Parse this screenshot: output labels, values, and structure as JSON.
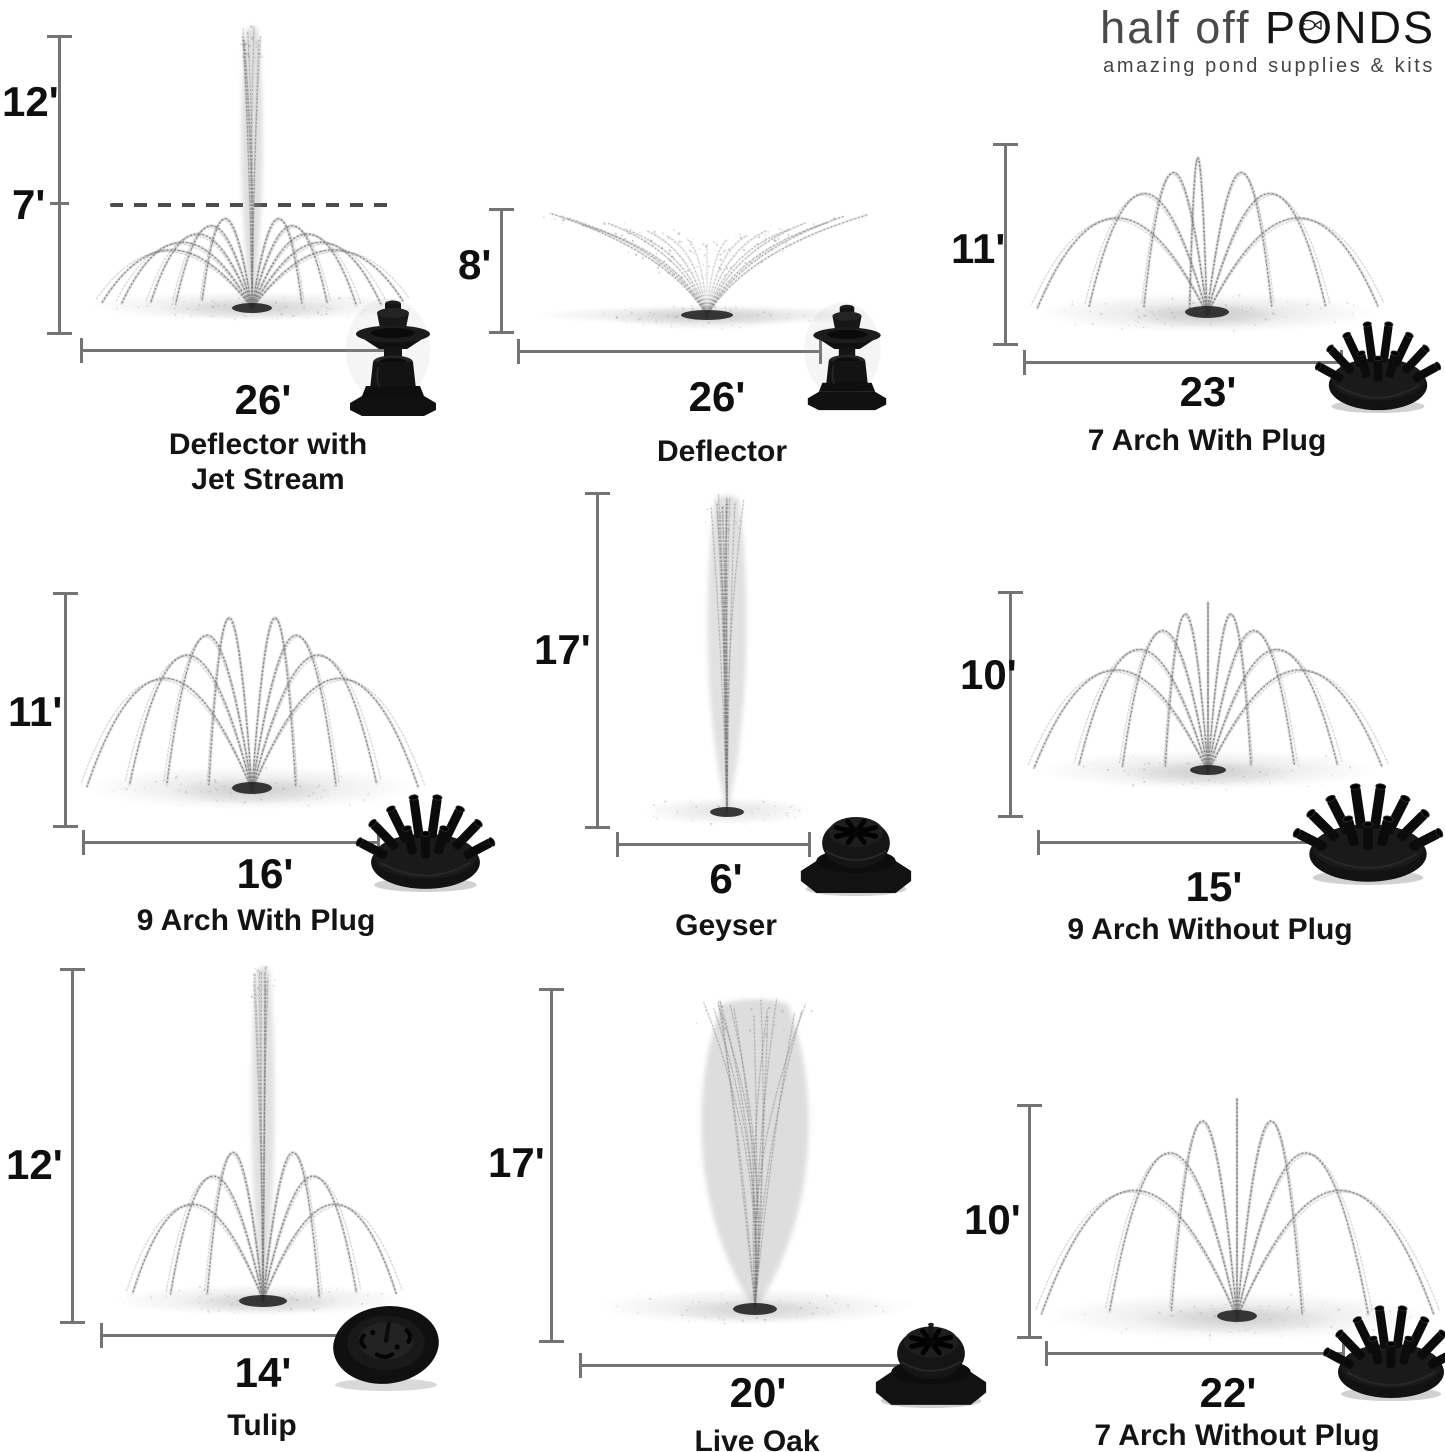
{
  "brand": {
    "name_light": "half off",
    "name_bold": "PONDS",
    "tagline": "amazing pond supplies & kits"
  },
  "fountains": [
    {
      "name": "Deflector with Jet Stream",
      "height_primary": "12'",
      "height_secondary": "7'",
      "width": "26'",
      "nozzle": "deflector-nozzle"
    },
    {
      "name": "Deflector",
      "height_primary": "8'",
      "width": "26'",
      "nozzle": "deflector-nozzle"
    },
    {
      "name": "7 Arch With Plug",
      "height_primary": "11'",
      "width": "23'",
      "nozzle": "multi-arm-nozzle"
    },
    {
      "name": "9 Arch With Plug",
      "height_primary": "11'",
      "width": "16'",
      "nozzle": "multi-arm-nozzle"
    },
    {
      "name": "Geyser",
      "height_primary": "17'",
      "width": "6'",
      "nozzle": "slotted-cap-nozzle"
    },
    {
      "name": "9 Arch Without Plug",
      "height_primary": "10'",
      "width": "15'",
      "nozzle": "multi-arm-nozzle"
    },
    {
      "name": "Tulip",
      "height_primary": "12'",
      "width": "14'",
      "nozzle": "tulip-disc-nozzle"
    },
    {
      "name": "Live Oak",
      "height_primary": "17'",
      "width": "20'",
      "nozzle": "slotted-cap-nozzle"
    },
    {
      "name": "7 Arch Without Plug",
      "height_primary": "10'",
      "width": "22'",
      "nozzle": "multi-arm-nozzle"
    }
  ],
  "colors": {
    "background": "#ffffff",
    "ruler": "#747474",
    "label": "#0f0f0f",
    "spray": "#7b7b7b",
    "nozzle": "#121212"
  }
}
